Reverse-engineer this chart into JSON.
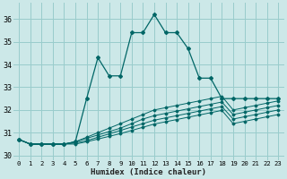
{
  "xlabel": "Humidex (Indice chaleur)",
  "bg_color": "#cce8e8",
  "grid_color": "#99cccc",
  "line_color": "#006666",
  "xlim": [
    -0.5,
    23.5
  ],
  "ylim": [
    29.8,
    36.7
  ],
  "yticks": [
    30,
    31,
    32,
    33,
    34,
    35,
    36
  ],
  "xticks": [
    0,
    1,
    2,
    3,
    4,
    5,
    6,
    7,
    8,
    9,
    10,
    11,
    12,
    13,
    14,
    15,
    16,
    17,
    18,
    19,
    20,
    21,
    22,
    23
  ],
  "xtick_labels": [
    "0",
    "1",
    "2",
    "3",
    "4",
    "5",
    "6",
    "7",
    "8",
    "9",
    "10",
    "11",
    "12",
    "13",
    "14",
    "15",
    "16",
    "17",
    "18",
    "19",
    "20",
    "21",
    "22",
    "23"
  ],
  "main_series": [
    30.7,
    30.5,
    30.5,
    30.5,
    30.5,
    30.6,
    32.5,
    34.3,
    33.5,
    33.5,
    35.4,
    35.4,
    36.2,
    35.4,
    35.4,
    34.7,
    33.4,
    33.4,
    32.5,
    32.5,
    32.5,
    32.5,
    32.5,
    32.5
  ],
  "diag_series": [
    [
      30.7,
      30.5,
      30.5,
      30.5,
      30.5,
      30.6,
      30.8,
      31.0,
      31.2,
      31.4,
      31.6,
      31.8,
      32.0,
      32.1,
      32.2,
      32.3,
      32.4,
      32.5,
      32.6,
      32.0,
      32.1,
      32.2,
      32.3,
      32.4
    ],
    [
      30.7,
      30.5,
      30.5,
      30.5,
      30.5,
      30.6,
      30.75,
      30.9,
      31.05,
      31.2,
      31.4,
      31.6,
      31.75,
      31.85,
      31.95,
      32.05,
      32.15,
      32.25,
      32.35,
      31.8,
      31.9,
      32.0,
      32.1,
      32.2
    ],
    [
      30.7,
      30.5,
      30.5,
      30.5,
      30.5,
      30.55,
      30.65,
      30.8,
      30.95,
      31.1,
      31.25,
      31.4,
      31.55,
      31.65,
      31.75,
      31.85,
      31.95,
      32.05,
      32.15,
      31.6,
      31.7,
      31.8,
      31.9,
      32.0
    ],
    [
      30.7,
      30.5,
      30.5,
      30.5,
      30.5,
      30.5,
      30.6,
      30.72,
      30.84,
      30.96,
      31.1,
      31.24,
      31.38,
      31.48,
      31.58,
      31.68,
      31.78,
      31.88,
      31.98,
      31.4,
      31.5,
      31.6,
      31.7,
      31.8
    ]
  ]
}
